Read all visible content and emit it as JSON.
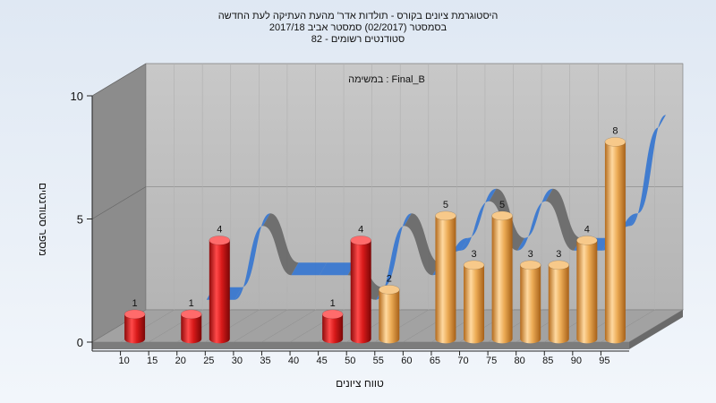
{
  "title_lines": [
    "היסטוגרמת ציונים בקורס - תולדות אדר' מהעת העתיקה לעת החדשה",
    "בסמסטר (02/2017) סמסטר אביב 2017/18",
    "82 - סטודנטים רשומים"
  ],
  "chart_data": {
    "type": "bar",
    "subtitle": "במשימה : Final_B",
    "xlabel": "טווח ציונים",
    "ylabel": "מספר סטודנטים",
    "ylim": [
      0,
      10
    ],
    "yticks": [
      0,
      5,
      10
    ],
    "x_tick_labels": [
      "10",
      "15",
      "20",
      "25",
      "30",
      "35",
      "40",
      "45",
      "50",
      "55",
      "60",
      "65",
      "70",
      "75",
      "80",
      "85",
      "90",
      "95"
    ],
    "bars": [
      {
        "x": 10,
        "value": 1,
        "label": "1",
        "color": "red"
      },
      {
        "x": 20,
        "value": 1,
        "label": "1",
        "color": "red"
      },
      {
        "x": 25,
        "value": 4,
        "label": "4",
        "color": "red"
      },
      {
        "x": 45,
        "value": 1,
        "label": "1",
        "color": "red"
      },
      {
        "x": 50,
        "value": 4,
        "label": "4",
        "color": "red"
      },
      {
        "x": 55,
        "value": 2,
        "label": "2",
        "color": "gold"
      },
      {
        "x": 65,
        "value": 5,
        "label": "5",
        "color": "gold"
      },
      {
        "x": 70,
        "value": 3,
        "label": "3",
        "color": "gold"
      },
      {
        "x": 75,
        "value": 5,
        "label": "5",
        "color": "gold"
      },
      {
        "x": 80,
        "value": 3,
        "label": "3",
        "color": "gold"
      },
      {
        "x": 85,
        "value": 3,
        "label": "3",
        "color": "gold"
      },
      {
        "x": 90,
        "value": 4,
        "label": "4",
        "color": "gold"
      },
      {
        "x": 95,
        "value": 8,
        "label": "8",
        "color": "gold"
      }
    ],
    "ribbon": {
      "x": [
        20,
        25,
        30,
        35,
        40,
        45,
        50,
        55,
        60,
        65,
        70,
        75,
        80,
        85,
        90,
        95,
        100
      ],
      "values": [
        1,
        1,
        4,
        2,
        2,
        2,
        1,
        4,
        2,
        3,
        5,
        3,
        5,
        3,
        3,
        4,
        8
      ]
    },
    "colors": {
      "red": "#e01818",
      "gold": "#e8a040",
      "ribbon_up": "#3a78d0",
      "ribbon_down": "#6a6a6a",
      "back_wall": "#bdbdbd",
      "left_wall": "#8a8a8a",
      "floor": "#9e9e9e"
    }
  }
}
